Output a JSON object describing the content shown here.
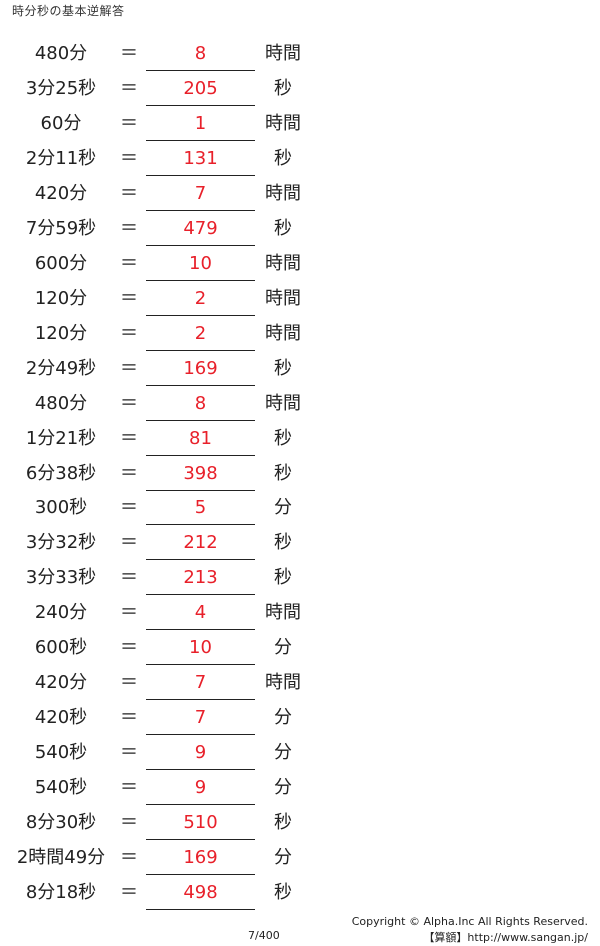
{
  "title": "時分秒の基本逆解答",
  "equals_sign": "＝",
  "rows": [
    {
      "question": "480分",
      "answer": "8",
      "unit": "時間"
    },
    {
      "question": "3分25秒",
      "answer": "205",
      "unit": "秒"
    },
    {
      "question": "60分",
      "answer": "1",
      "unit": "時間"
    },
    {
      "question": "2分11秒",
      "answer": "131",
      "unit": "秒"
    },
    {
      "question": "420分",
      "answer": "7",
      "unit": "時間"
    },
    {
      "question": "7分59秒",
      "answer": "479",
      "unit": "秒"
    },
    {
      "question": "600分",
      "answer": "10",
      "unit": "時間"
    },
    {
      "question": "120分",
      "answer": "2",
      "unit": "時間"
    },
    {
      "question": "120分",
      "answer": "2",
      "unit": "時間"
    },
    {
      "question": "2分49秒",
      "answer": "169",
      "unit": "秒"
    },
    {
      "question": "480分",
      "answer": "8",
      "unit": "時間"
    },
    {
      "question": "1分21秒",
      "answer": "81",
      "unit": "秒"
    },
    {
      "question": "6分38秒",
      "answer": "398",
      "unit": "秒"
    },
    {
      "question": "300秒",
      "answer": "5",
      "unit": "分"
    },
    {
      "question": "3分32秒",
      "answer": "212",
      "unit": "秒"
    },
    {
      "question": "3分33秒",
      "answer": "213",
      "unit": "秒"
    },
    {
      "question": "240分",
      "answer": "4",
      "unit": "時間"
    },
    {
      "question": "600秒",
      "answer": "10",
      "unit": "分"
    },
    {
      "question": "420分",
      "answer": "7",
      "unit": "時間"
    },
    {
      "question": "420秒",
      "answer": "7",
      "unit": "分"
    },
    {
      "question": "540秒",
      "answer": "9",
      "unit": "分"
    },
    {
      "question": "540秒",
      "answer": "9",
      "unit": "分"
    },
    {
      "question": "8分30秒",
      "answer": "510",
      "unit": "秒"
    },
    {
      "question": "2時間49分",
      "answer": "169",
      "unit": "分"
    },
    {
      "question": "8分18秒",
      "answer": "498",
      "unit": "秒"
    }
  ],
  "answer_color": "#e8202a",
  "footer": {
    "page": "7/400",
    "copyright": "Copyright © Alpha.Inc All Rights Reserved.",
    "site": "【算額】http://www.sangan.jp/"
  }
}
